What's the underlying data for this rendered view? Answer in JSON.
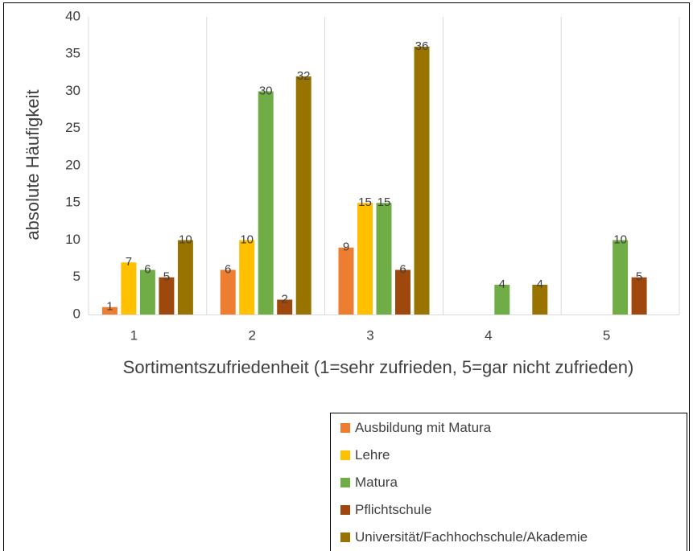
{
  "chart_data": {
    "type": "bar",
    "x_label": "Sortimentszufriedenheit (1=sehr zufrieden, 5=gar nicht zufrieden)",
    "y_label": "absolute Häufigkeit",
    "categories": [
      "1",
      "2",
      "3",
      "4",
      "5"
    ],
    "series": [
      {
        "name": "Ausbildung mit Matura",
        "color": "#ed7d31",
        "values": [
          1,
          6,
          9,
          null,
          null
        ]
      },
      {
        "name": "Lehre",
        "color": "#ffc000",
        "values": [
          7,
          10,
          15,
          null,
          null
        ]
      },
      {
        "name": "Matura",
        "color": "#70ad47",
        "values": [
          6,
          30,
          15,
          4,
          10
        ]
      },
      {
        "name": "Pflichtschule",
        "color": "#9e480e",
        "values": [
          5,
          2,
          6,
          null,
          5
        ]
      },
      {
        "name": "Universität/Fachhochschule/Akademie",
        "color": "#997300",
        "values": [
          10,
          32,
          36,
          4,
          null
        ]
      }
    ],
    "ylim": [
      0,
      40
    ],
    "yticks": [
      0,
      5,
      10,
      15,
      20,
      25,
      30,
      35,
      40
    ],
    "grid": "x"
  }
}
